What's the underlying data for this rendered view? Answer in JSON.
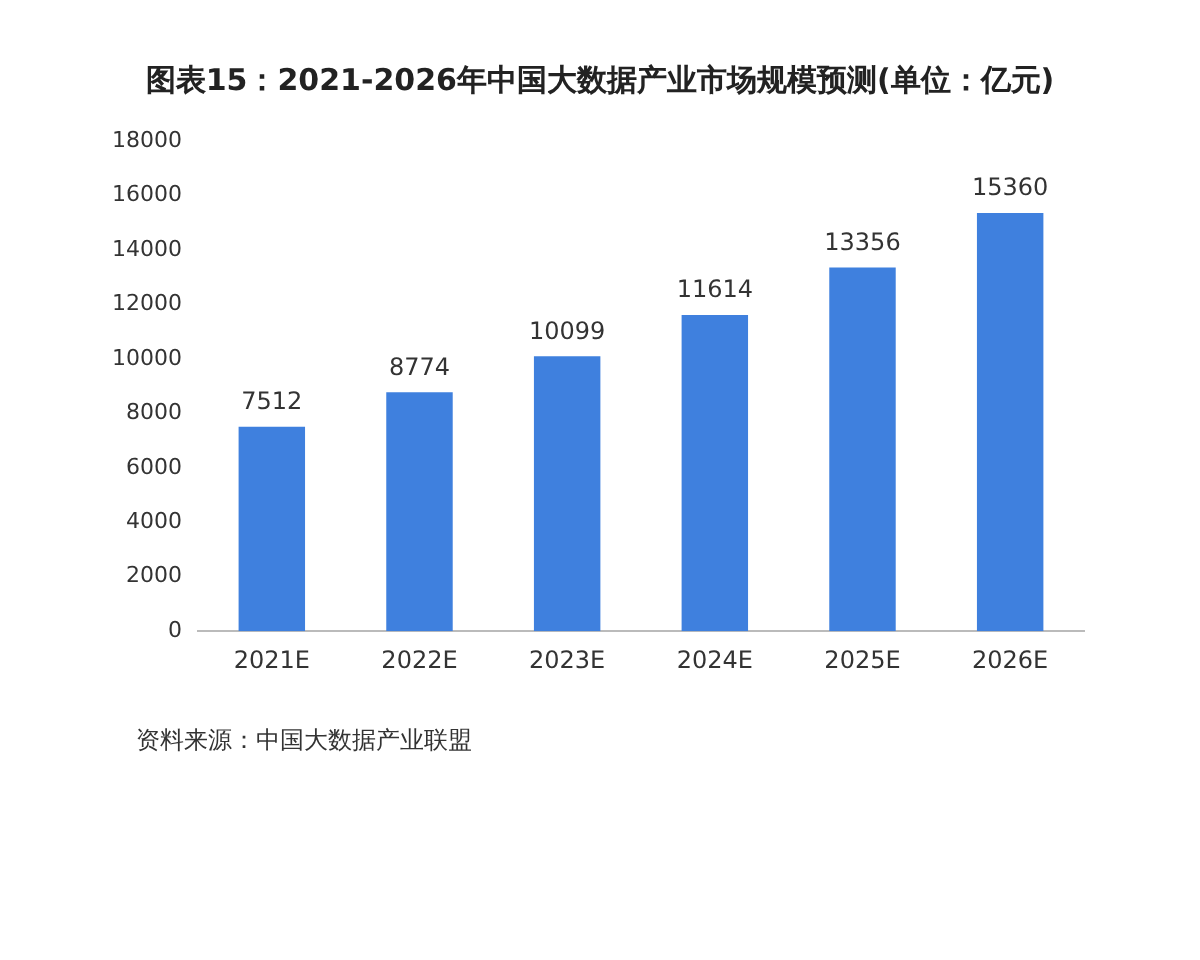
{
  "chart_data": {
    "type": "bar",
    "title": "图表15：2021-2026年中国大数据产业市场规模预测(单位：亿元)",
    "categories": [
      "2021E",
      "2022E",
      "2023E",
      "2024E",
      "2025E",
      "2026E"
    ],
    "values": [
      7512,
      8774,
      10099,
      11614,
      13356,
      15360
    ],
    "color": "#3f80de",
    "ylim": [
      0,
      18000
    ],
    "yticks": [
      0,
      2000,
      4000,
      6000,
      8000,
      10000,
      12000,
      14000,
      16000,
      18000
    ],
    "grid": false,
    "legend": false,
    "data_labels": true,
    "annotations": [
      "资料来源：中国大数据产业联盟"
    ]
  }
}
